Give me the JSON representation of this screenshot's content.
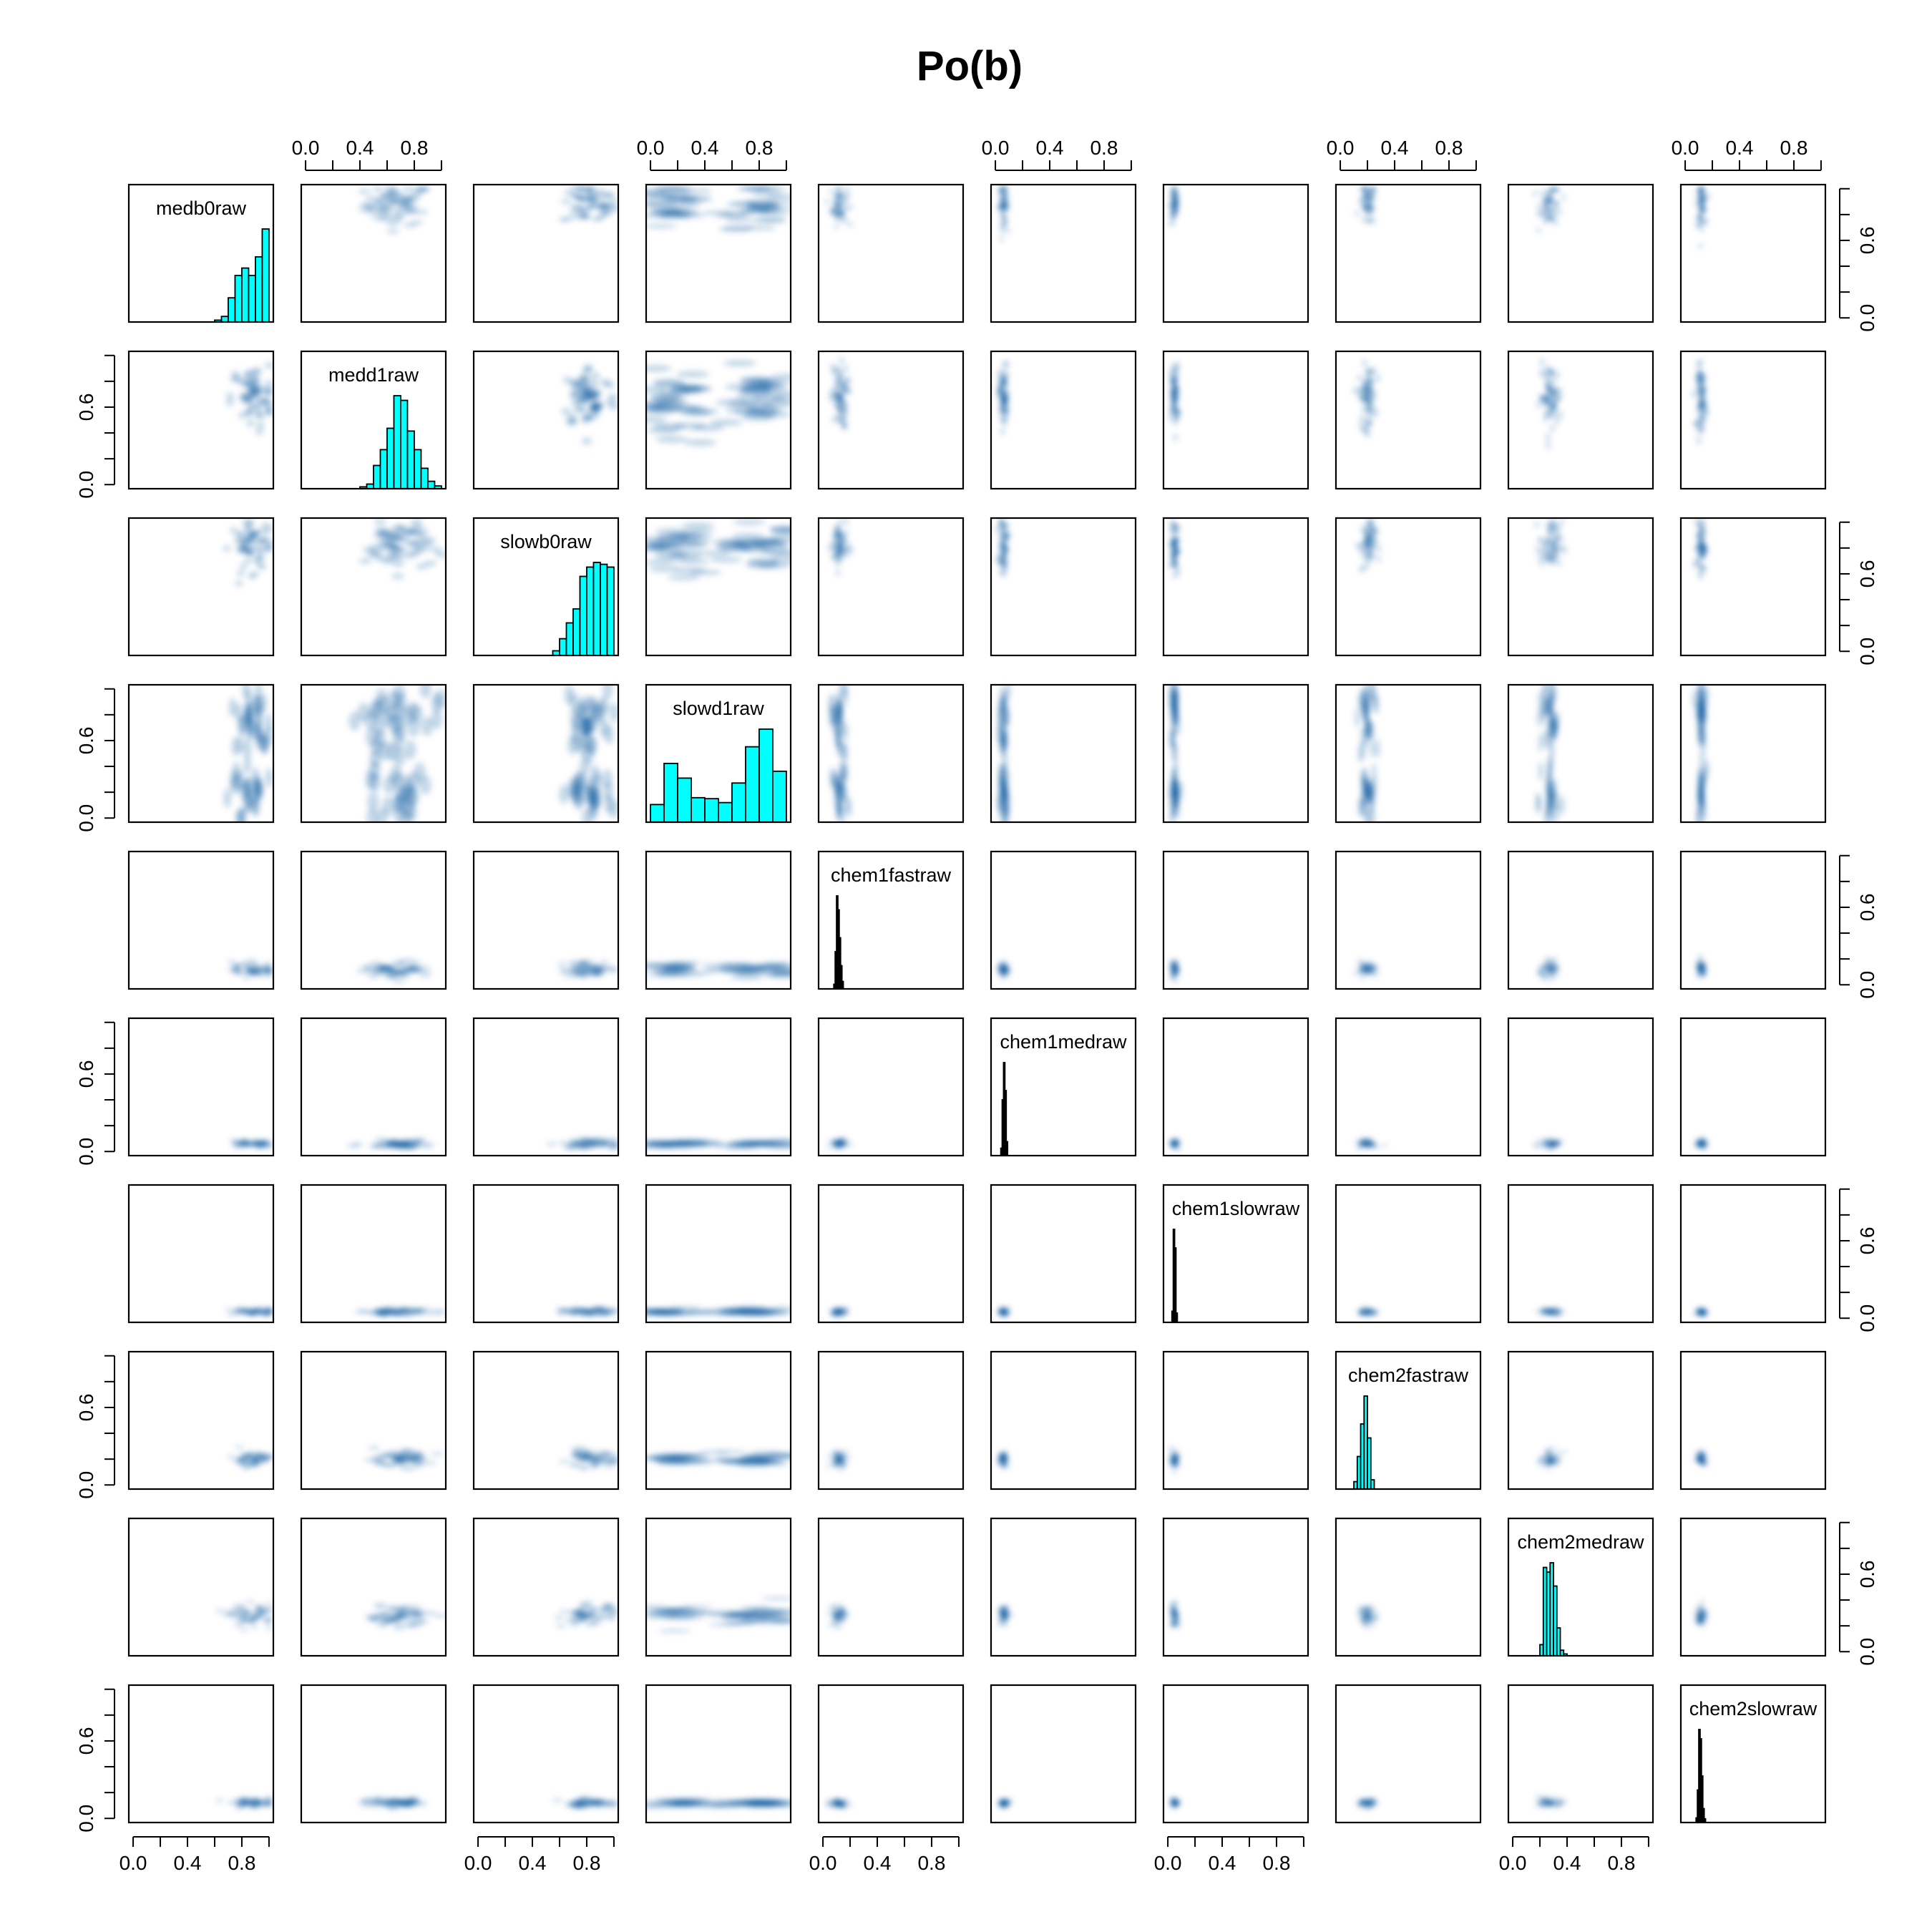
{
  "title": "Po(b)",
  "chart_data": {
    "type": "scatter",
    "layout": "pairs-matrix",
    "title": "Po(b)",
    "variables": [
      "medb0raw",
      "medd1raw",
      "slowb0raw",
      "slowd1raw",
      "chem1fastraw",
      "chem1medraw",
      "chem1slowraw",
      "chem2fastraw",
      "chem2medraw",
      "chem2slowraw"
    ],
    "axis_range": [
      0,
      1
    ],
    "axis_ticks": [
      0.0,
      0.2,
      0.4,
      0.6,
      0.8,
      1.0
    ],
    "axis_tick_labels": [
      "0.0",
      "0.4",
      "0.8"
    ],
    "side_axis_tick_labels": [
      "0.0",
      "0.6"
    ],
    "variable_centers": [
      0.88,
      0.68,
      0.82,
      0.55,
      0.12,
      0.06,
      0.05,
      0.2,
      0.28,
      0.12
    ],
    "variable_spread": [
      0.08,
      0.12,
      0.1,
      0.32,
      0.03,
      0.015,
      0.012,
      0.03,
      0.04,
      0.015
    ],
    "histograms": [
      {
        "variable": "medb0raw",
        "fill": "#00ffff",
        "bins": [
          0.6,
          0.65,
          0.7,
          0.75,
          0.8,
          0.85,
          0.9,
          0.95,
          1.0
        ],
        "counts": [
          2,
          6,
          26,
          50,
          58,
          50,
          70,
          100
        ]
      },
      {
        "variable": "medd1raw",
        "fill": "#00ffff",
        "bins": [
          0.4,
          0.45,
          0.5,
          0.55,
          0.6,
          0.65,
          0.7,
          0.75,
          0.8,
          0.85,
          0.9,
          0.95,
          1.0
        ],
        "counts": [
          2,
          5,
          25,
          42,
          65,
          100,
          95,
          62,
          42,
          22,
          8,
          3
        ]
      },
      {
        "variable": "slowb0raw",
        "fill": "#00ffff",
        "bins": [
          0.55,
          0.6,
          0.65,
          0.7,
          0.75,
          0.8,
          0.85,
          0.9,
          0.95,
          1.0
        ],
        "counts": [
          5,
          18,
          35,
          50,
          85,
          95,
          100,
          98,
          95
        ]
      },
      {
        "variable": "slowd1raw",
        "fill": "#00ffff",
        "bins": [
          0.0,
          0.1,
          0.2,
          0.3,
          0.4,
          0.5,
          0.6,
          0.7,
          0.8,
          0.9,
          1.0
        ],
        "counts": [
          18,
          60,
          45,
          25,
          24,
          20,
          40,
          77,
          95,
          52
        ]
      },
      {
        "variable": "chem1fastraw",
        "fill": "#000000",
        "bins": [
          0.08,
          0.09,
          0.1,
          0.11,
          0.12,
          0.13,
          0.14,
          0.15
        ],
        "counts": [
          5,
          40,
          100,
          85,
          55,
          25,
          8
        ]
      },
      {
        "variable": "chem1medraw",
        "fill": "#000000",
        "bins": [
          0.04,
          0.05,
          0.06,
          0.07,
          0.08,
          0.09
        ],
        "counts": [
          8,
          60,
          100,
          70,
          15
        ]
      },
      {
        "variable": "chem1slowraw",
        "fill": "#000000",
        "bins": [
          0.03,
          0.04,
          0.05,
          0.06,
          0.07
        ],
        "counts": [
          12,
          100,
          80,
          10
        ]
      },
      {
        "variable": "chem2fastraw",
        "fill": "#00ffff",
        "bins": [
          0.1,
          0.125,
          0.15,
          0.175,
          0.2,
          0.225,
          0.25
        ],
        "counts": [
          8,
          35,
          70,
          100,
          55,
          10
        ]
      },
      {
        "variable": "chem2medraw",
        "fill": "#00ffff",
        "bins": [
          0.2,
          0.225,
          0.25,
          0.275,
          0.3,
          0.325,
          0.35,
          0.375,
          0.4
        ],
        "counts": [
          12,
          95,
          90,
          100,
          75,
          30,
          6,
          2
        ]
      },
      {
        "variable": "chem2slowraw",
        "fill": "#000000",
        "bins": [
          0.08,
          0.09,
          0.1,
          0.11,
          0.12,
          0.13,
          0.14,
          0.15
        ],
        "counts": [
          5,
          35,
          100,
          90,
          50,
          15,
          4
        ]
      }
    ],
    "off_diagonal": "smoothed-density-scatter",
    "density_color": "#08519c",
    "grid": false
  }
}
